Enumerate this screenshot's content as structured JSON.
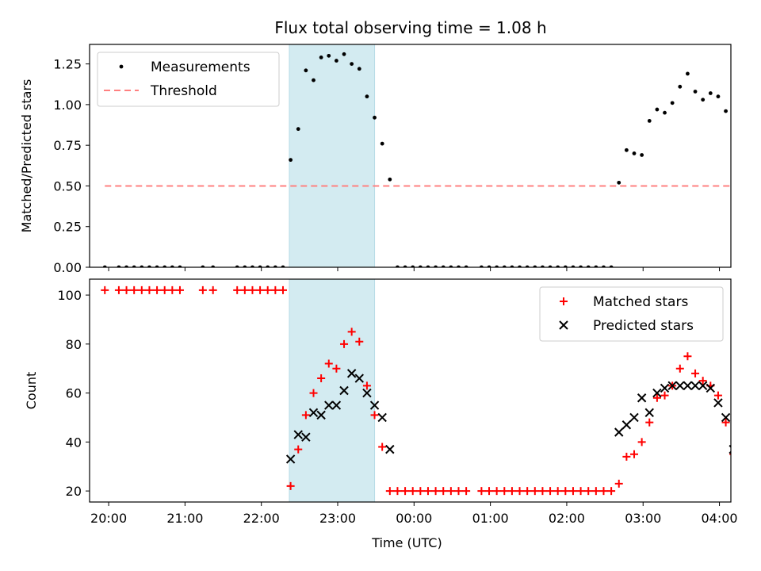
{
  "title": "Flux total observing time = 1.08 h",
  "chart_data": [
    {
      "type": "scatter",
      "ylabel": "Matched/Predicted stars",
      "xlabel": "",
      "xlim": [
        "19:45",
        "04:09"
      ],
      "ylim": [
        0,
        1.37
      ],
      "x_ticks": [
        "20:00",
        "21:00",
        "22:00",
        "23:00",
        "00:00",
        "01:00",
        "02:00",
        "03:00",
        "04:00"
      ],
      "y_ticks": [
        "0.00",
        "0.25",
        "0.50",
        "0.75",
        "1.00",
        "1.25"
      ],
      "highlight_span": {
        "from": "22:22",
        "to": "23:29",
        "color": "#d3ebf1"
      },
      "legend": "top-left",
      "series": [
        {
          "name": "Measurements",
          "marker": "dot",
          "color": "#000000",
          "points": [
            [
              "19:57",
              0
            ],
            [
              "20:08",
              0
            ],
            [
              "20:14",
              0
            ],
            [
              "20:20",
              0
            ],
            [
              "20:26",
              0
            ],
            [
              "20:32",
              0
            ],
            [
              "20:38",
              0
            ],
            [
              "20:44",
              0
            ],
            [
              "20:50",
              0
            ],
            [
              "20:56",
              0
            ],
            [
              "21:14",
              0
            ],
            [
              "21:22",
              0
            ],
            [
              "21:41",
              0
            ],
            [
              "21:47",
              0
            ],
            [
              "21:53",
              0
            ],
            [
              "21:59",
              0
            ],
            [
              "22:05",
              0
            ],
            [
              "22:11",
              0
            ],
            [
              "22:17",
              0
            ],
            [
              "22:23",
              0.66
            ],
            [
              "22:29",
              0.85
            ],
            [
              "22:35",
              1.21
            ],
            [
              "22:41",
              1.15
            ],
            [
              "22:47",
              1.29
            ],
            [
              "22:53",
              1.3
            ],
            [
              "22:59",
              1.27
            ],
            [
              "23:05",
              1.31
            ],
            [
              "23:11",
              1.25
            ],
            [
              "23:17",
              1.22
            ],
            [
              "23:23",
              1.05
            ],
            [
              "23:29",
              0.92
            ],
            [
              "23:35",
              0.76
            ],
            [
              "23:41",
              0.54
            ],
            [
              "23:47",
              0
            ],
            [
              "23:53",
              0
            ],
            [
              "23:59",
              0
            ],
            [
              "00:05",
              0
            ],
            [
              "00:11",
              0
            ],
            [
              "00:17",
              0
            ],
            [
              "00:23",
              0
            ],
            [
              "00:29",
              0
            ],
            [
              "00:35",
              0
            ],
            [
              "00:41",
              0
            ],
            [
              "00:53",
              0
            ],
            [
              "00:59",
              0
            ],
            [
              "01:05",
              0
            ],
            [
              "01:11",
              0
            ],
            [
              "01:17",
              0
            ],
            [
              "01:23",
              0
            ],
            [
              "01:29",
              0
            ],
            [
              "01:35",
              0
            ],
            [
              "01:41",
              0
            ],
            [
              "01:47",
              0
            ],
            [
              "01:53",
              0
            ],
            [
              "01:59",
              0
            ],
            [
              "02:05",
              0
            ],
            [
              "02:11",
              0
            ],
            [
              "02:17",
              0
            ],
            [
              "02:23",
              0
            ],
            [
              "02:29",
              0
            ],
            [
              "02:35",
              0
            ],
            [
              "02:41",
              0.52
            ],
            [
              "02:47",
              0.72
            ],
            [
              "02:53",
              0.7
            ],
            [
              "02:59",
              0.69
            ],
            [
              "03:05",
              0.9
            ],
            [
              "03:11",
              0.97
            ],
            [
              "03:17",
              0.95
            ],
            [
              "03:23",
              1.01
            ],
            [
              "03:29",
              1.11
            ],
            [
              "03:35",
              1.19
            ],
            [
              "03:41",
              1.08
            ],
            [
              "03:47",
              1.03
            ],
            [
              "03:53",
              1.07
            ],
            [
              "03:59",
              1.05
            ],
            [
              "04:05",
              0.96
            ],
            [
              "04:11",
              0.94
            ]
          ]
        },
        {
          "name": "Threshold",
          "line": "dashed",
          "color": "#ff8080",
          "points": [
            [
              "19:57",
              0.5
            ],
            [
              "04:09",
              0.5
            ]
          ]
        }
      ]
    },
    {
      "type": "scatter",
      "ylabel": "Count",
      "xlabel": "Time (UTC)",
      "xlim": [
        "19:45",
        "04:09"
      ],
      "ylim": [
        15.5,
        106.5
      ],
      "x_ticks": [
        "20:00",
        "21:00",
        "22:00",
        "23:00",
        "00:00",
        "01:00",
        "02:00",
        "03:00",
        "04:00"
      ],
      "y_ticks": [
        "20",
        "40",
        "60",
        "80",
        "100"
      ],
      "highlight_span": {
        "from": "22:22",
        "to": "23:29",
        "color": "#d3ebf1"
      },
      "legend": "top-right",
      "series": [
        {
          "name": "Matched stars",
          "marker": "plus",
          "color": "#ff0000",
          "points": [
            [
              "19:57",
              102
            ],
            [
              "20:08",
              102
            ],
            [
              "20:14",
              102
            ],
            [
              "20:20",
              102
            ],
            [
              "20:26",
              102
            ],
            [
              "20:32",
              102
            ],
            [
              "20:38",
              102
            ],
            [
              "20:44",
              102
            ],
            [
              "20:50",
              102
            ],
            [
              "20:56",
              102
            ],
            [
              "21:14",
              102
            ],
            [
              "21:22",
              102
            ],
            [
              "21:41",
              102
            ],
            [
              "21:47",
              102
            ],
            [
              "21:53",
              102
            ],
            [
              "21:59",
              102
            ],
            [
              "22:05",
              102
            ],
            [
              "22:11",
              102
            ],
            [
              "22:17",
              102
            ],
            [
              "22:23",
              22
            ],
            [
              "22:29",
              37
            ],
            [
              "22:35",
              51
            ],
            [
              "22:41",
              60
            ],
            [
              "22:47",
              66
            ],
            [
              "22:53",
              72
            ],
            [
              "22:59",
              70
            ],
            [
              "23:05",
              80
            ],
            [
              "23:11",
              85
            ],
            [
              "23:17",
              81
            ],
            [
              "23:23",
              63
            ],
            [
              "23:29",
              51
            ],
            [
              "23:35",
              38
            ],
            [
              "23:41",
              20
            ],
            [
              "23:47",
              20
            ],
            [
              "23:53",
              20
            ],
            [
              "23:59",
              20
            ],
            [
              "00:05",
              20
            ],
            [
              "00:11",
              20
            ],
            [
              "00:17",
              20
            ],
            [
              "00:23",
              20
            ],
            [
              "00:29",
              20
            ],
            [
              "00:35",
              20
            ],
            [
              "00:41",
              20
            ],
            [
              "00:53",
              20
            ],
            [
              "00:59",
              20
            ],
            [
              "01:05",
              20
            ],
            [
              "01:11",
              20
            ],
            [
              "01:17",
              20
            ],
            [
              "01:23",
              20
            ],
            [
              "01:29",
              20
            ],
            [
              "01:35",
              20
            ],
            [
              "01:41",
              20
            ],
            [
              "01:47",
              20
            ],
            [
              "01:53",
              20
            ],
            [
              "01:59",
              20
            ],
            [
              "02:05",
              20
            ],
            [
              "02:11",
              20
            ],
            [
              "02:17",
              20
            ],
            [
              "02:23",
              20
            ],
            [
              "02:29",
              20
            ],
            [
              "02:35",
              20
            ],
            [
              "02:41",
              23
            ],
            [
              "02:47",
              34
            ],
            [
              "02:53",
              35
            ],
            [
              "02:59",
              40
            ],
            [
              "03:05",
              48
            ],
            [
              "03:11",
              58
            ],
            [
              "03:17",
              59
            ],
            [
              "03:23",
              63
            ],
            [
              "03:29",
              70
            ],
            [
              "03:35",
              75
            ],
            [
              "03:41",
              68
            ],
            [
              "03:47",
              65
            ],
            [
              "03:53",
              63
            ],
            [
              "03:59",
              59
            ],
            [
              "04:05",
              48
            ],
            [
              "04:11",
              35
            ]
          ]
        },
        {
          "name": "Predicted stars",
          "marker": "x",
          "color": "#000000",
          "points": [
            [
              "22:23",
              33
            ],
            [
              "22:29",
              43
            ],
            [
              "22:35",
              42
            ],
            [
              "22:41",
              52
            ],
            [
              "22:47",
              51
            ],
            [
              "22:53",
              55
            ],
            [
              "22:59",
              55
            ],
            [
              "23:05",
              61
            ],
            [
              "23:11",
              68
            ],
            [
              "23:17",
              66
            ],
            [
              "23:23",
              60
            ],
            [
              "23:29",
              55
            ],
            [
              "23:35",
              50
            ],
            [
              "23:41",
              37
            ],
            [
              "02:41",
              44
            ],
            [
              "02:47",
              47
            ],
            [
              "02:53",
              50
            ],
            [
              "02:59",
              58
            ],
            [
              "03:05",
              52
            ],
            [
              "03:11",
              60
            ],
            [
              "03:17",
              62
            ],
            [
              "03:23",
              63
            ],
            [
              "03:29",
              63
            ],
            [
              "03:35",
              63
            ],
            [
              "03:41",
              63
            ],
            [
              "03:47",
              63
            ],
            [
              "03:53",
              62
            ],
            [
              "03:59",
              56
            ],
            [
              "04:05",
              50
            ],
            [
              "04:11",
              37
            ]
          ]
        }
      ]
    }
  ]
}
